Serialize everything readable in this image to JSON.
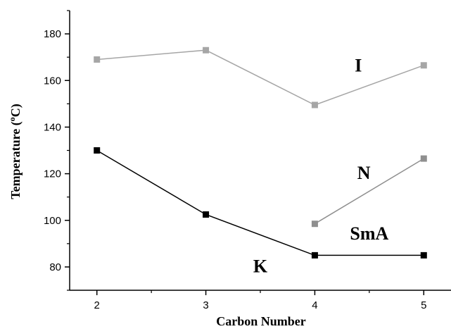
{
  "chart_data": {
    "type": "line",
    "xlabel": "Carbon Number",
    "ylabel_main": "Temperature (",
    "ylabel_sup": "o",
    "ylabel_end": "C)",
    "x_ticks": [
      "2",
      "3",
      "4",
      "5"
    ],
    "y_ticks": [
      "80",
      "100",
      "120",
      "140",
      "160",
      "180"
    ],
    "xlim": [
      1.75,
      5.25
    ],
    "ylim": [
      70,
      190
    ],
    "grid": false,
    "series": [
      {
        "color": "#a6a6a6",
        "x": [
          2,
          3,
          4,
          5
        ],
        "y": [
          169,
          173,
          149.5,
          166.5
        ]
      },
      {
        "color": "#8f8f8f",
        "x": [
          4,
          5
        ],
        "y": [
          98.5,
          126.5
        ]
      },
      {
        "color": "#000000",
        "x": [
          2,
          3,
          4,
          5
        ],
        "y": [
          130,
          102.5,
          85,
          85
        ]
      }
    ],
    "annotations": [
      {
        "text": "I",
        "x": 4.4,
        "y": 166.5
      },
      {
        "text": "N",
        "x": 4.45,
        "y": 120.5
      },
      {
        "text": "SmA",
        "x": 4.5,
        "y": 94.5
      },
      {
        "text": "K",
        "x": 3.5,
        "y": 80.5
      }
    ]
  }
}
